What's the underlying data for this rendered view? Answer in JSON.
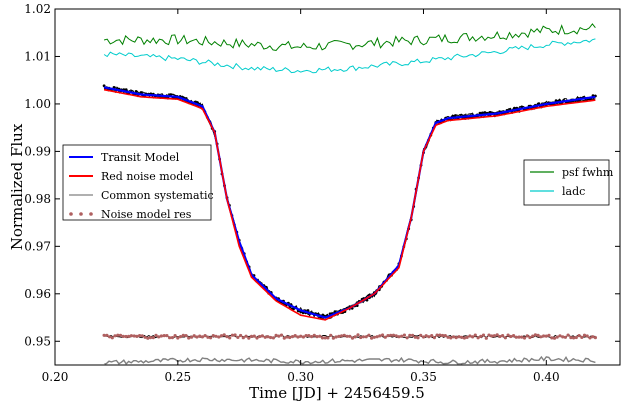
{
  "chart_data": {
    "type": "line",
    "xlabel": "Time [JD] + 2456459.5",
    "ylabel": "Normalized Flux",
    "xlim": [
      0.2,
      0.43
    ],
    "ylim": [
      0.945,
      1.02
    ],
    "x_ticks": [
      "0.20",
      "0.25",
      "0.30",
      "0.35",
      "0.40"
    ],
    "y_ticks": [
      "0.95",
      "0.96",
      "0.97",
      "0.98",
      "0.99",
      "1.00",
      "1.01",
      "1.02"
    ],
    "grid": false,
    "colors": {
      "transit_model": "#0000ff",
      "red_noise": "#ff0000",
      "common_systematic": "#808080",
      "noise_res": "#b06060",
      "psf_fwhm": "#008000",
      "ladc": "#00cccc",
      "data_points": "#000000"
    },
    "legend_left": {
      "placement": "center-left",
      "entries": [
        {
          "label": "Transit Model",
          "color": "#0000ff",
          "style": "line"
        },
        {
          "label": "Red noise model",
          "color": "#ff0000",
          "style": "line"
        },
        {
          "label": "Common systematic",
          "color": "#808080",
          "style": "line"
        },
        {
          "label": "Noise model res",
          "color": "#b06060",
          "style": "dot"
        }
      ]
    },
    "legend_right": {
      "placement": "center-right",
      "entries": [
        {
          "label": "psf fwhm",
          "color": "#008000",
          "style": "line"
        },
        {
          "label": "ladc",
          "color": "#00cccc",
          "style": "line"
        }
      ]
    },
    "series": [
      {
        "name": "Transit Model",
        "x": [
          0.22,
          0.235,
          0.25,
          0.26,
          0.265,
          0.27,
          0.275,
          0.28,
          0.29,
          0.3,
          0.31,
          0.32,
          0.33,
          0.34,
          0.345,
          0.35,
          0.355,
          0.36,
          0.37,
          0.38,
          0.39,
          0.4,
          0.42
        ],
        "y": [
          1.0035,
          1.002,
          1.0015,
          0.9995,
          0.994,
          0.98,
          0.971,
          0.964,
          0.959,
          0.9565,
          0.955,
          0.957,
          0.96,
          0.966,
          0.976,
          0.99,
          0.996,
          0.997,
          0.9975,
          0.998,
          0.999,
          1.0,
          1.0015
        ]
      },
      {
        "name": "Red noise model",
        "x": [
          0.22,
          0.235,
          0.25,
          0.26,
          0.265,
          0.27,
          0.275,
          0.28,
          0.29,
          0.3,
          0.31,
          0.32,
          0.33,
          0.34,
          0.345,
          0.35,
          0.355,
          0.36,
          0.37,
          0.38,
          0.39,
          0.4,
          0.42
        ],
        "y": [
          1.003,
          1.0015,
          1.001,
          0.999,
          0.994,
          0.98,
          0.97,
          0.9635,
          0.9585,
          0.9555,
          0.9545,
          0.957,
          0.96,
          0.9655,
          0.976,
          0.99,
          0.9955,
          0.9965,
          0.997,
          0.9975,
          0.9985,
          0.9995,
          1.0008
        ]
      },
      {
        "name": "Common systematic",
        "x": [
          0.22,
          0.24,
          0.26,
          0.28,
          0.3,
          0.32,
          0.34,
          0.36,
          0.38,
          0.4,
          0.42
        ],
        "y": [
          0.9455,
          0.9458,
          0.9462,
          0.946,
          0.9457,
          0.9459,
          0.9461,
          0.9456,
          0.9458,
          0.9463,
          0.946
        ]
      },
      {
        "name": "Noise model res",
        "x": [
          0.22,
          0.26,
          0.3,
          0.34,
          0.38,
          0.42
        ],
        "y": [
          0.951,
          0.951,
          0.951,
          0.951,
          0.951,
          0.951
        ]
      },
      {
        "name": "psf fwhm",
        "x": [
          0.22,
          0.25,
          0.28,
          0.3,
          0.32,
          0.35,
          0.38,
          0.4,
          0.42
        ],
        "y": [
          1.0135,
          1.0135,
          1.0125,
          1.012,
          1.0125,
          1.0135,
          1.0145,
          1.0155,
          1.016
        ]
      },
      {
        "name": "ladc",
        "x": [
          0.22,
          0.25,
          0.28,
          0.3,
          0.32,
          0.35,
          0.38,
          0.4,
          0.42
        ],
        "y": [
          1.0105,
          1.0095,
          1.0075,
          1.007,
          1.0075,
          1.009,
          1.011,
          1.0125,
          1.0135
        ]
      }
    ]
  }
}
